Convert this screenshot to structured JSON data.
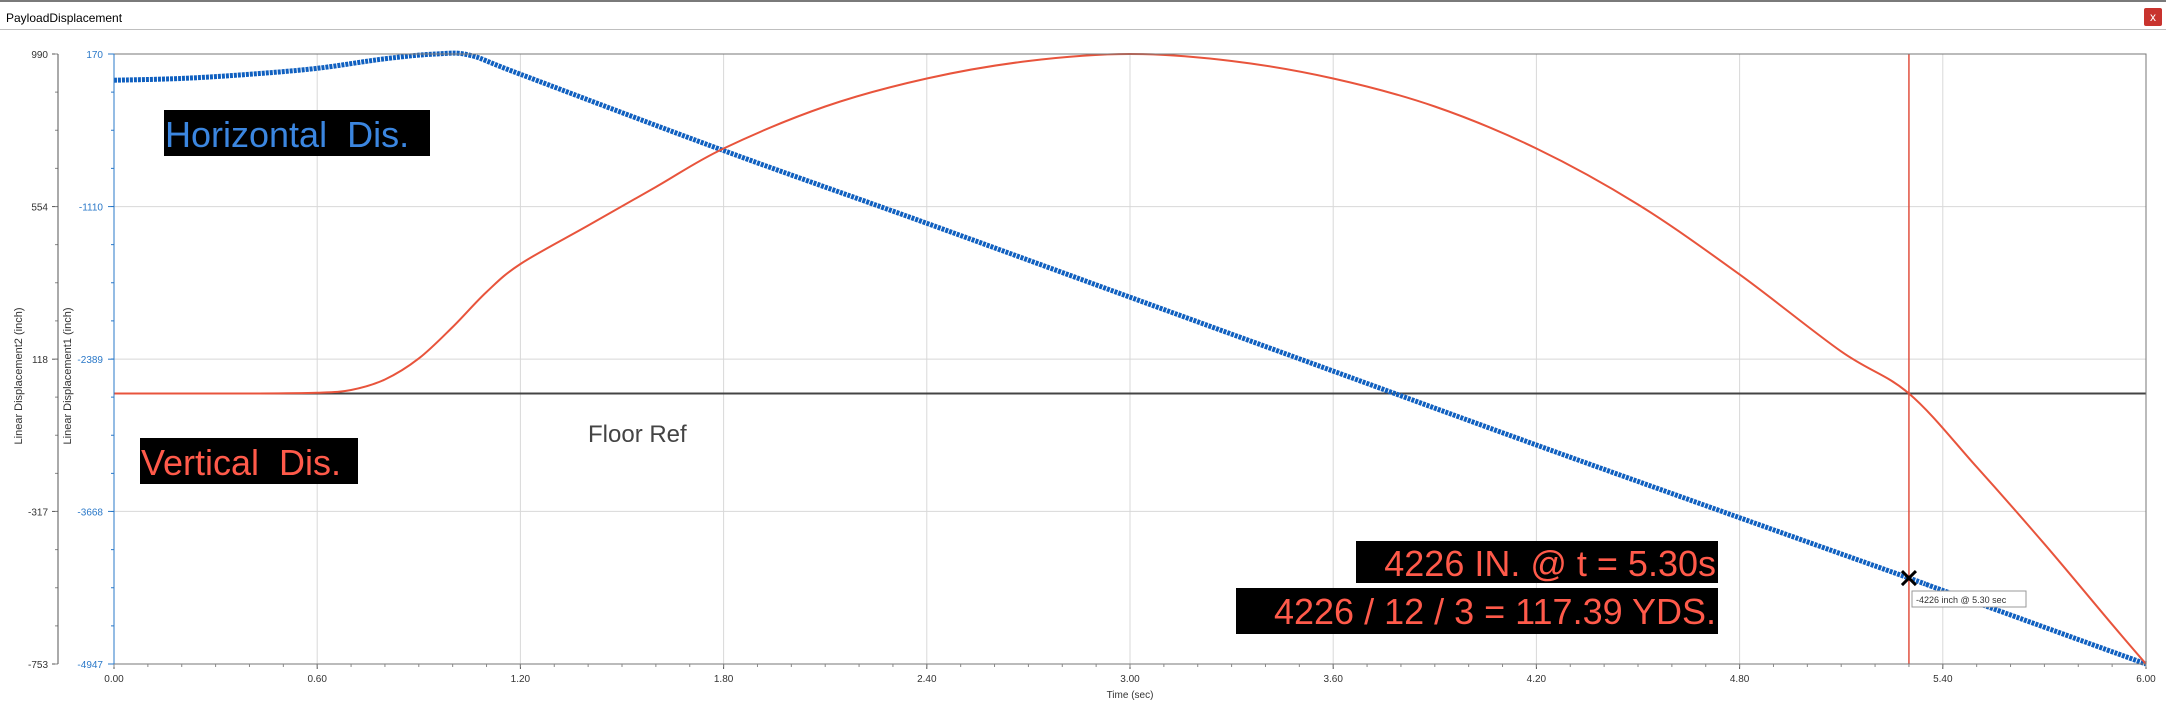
{
  "window": {
    "title": "PayloadDisplacement",
    "close_label": "x"
  },
  "chart_data": {
    "type": "line",
    "xlabel": "Time (sec)",
    "ylabel_outer": "Linear Displacement2 (inch)",
    "ylabel_inner": "Linear Displacement1 (inch)",
    "xlim": [
      0,
      6
    ],
    "x_ticks": [
      0,
      0.6,
      1.2,
      1.8,
      2.4,
      3.0,
      3.6,
      4.2,
      4.8,
      5.4,
      6.0
    ],
    "x_tick_labels": [
      "0.00",
      "0.60",
      "1.20",
      "1.80",
      "2.40",
      "3.00",
      "3.60",
      "4.20",
      "4.80",
      "5.40",
      "6.00"
    ],
    "y_outer": {
      "lim": [
        -753,
        990
      ],
      "ticks": [
        990,
        554,
        118,
        -317,
        -753
      ],
      "tick_labels": [
        "990",
        "554",
        "118",
        "-317",
        "-753"
      ],
      "color": "#333333"
    },
    "y_inner": {
      "lim": [
        -4947,
        170
      ],
      "ticks": [
        170,
        -1110,
        -2389,
        -3668,
        -4947
      ],
      "tick_labels": [
        "170",
        "-1110",
        "-2389",
        "-3668",
        "-4947"
      ],
      "color": "#2a78c8"
    },
    "grid": true,
    "series": [
      {
        "axis": "inner",
        "color": "#1060c0",
        "x": [
          0,
          0.2,
          0.4,
          0.6,
          0.8,
          0.95,
          1.05,
          1.2,
          1.8,
          2.4,
          3.0,
          3.6,
          4.2,
          4.8,
          5.3,
          5.4,
          6.0
        ],
        "values": [
          -50,
          -35,
          0,
          50,
          130,
          170,
          160,
          0,
          -640,
          -1250,
          -1870,
          -2490,
          -3110,
          -3720,
          -4226,
          -4330,
          -4947
        ]
      },
      {
        "axis": "outer",
        "color": "#e8543c",
        "x": [
          0,
          0.4,
          0.6,
          0.7,
          0.8,
          0.9,
          1.0,
          1.1,
          1.2,
          1.4,
          1.6,
          1.8,
          2.1,
          2.4,
          2.7,
          3.0,
          3.3,
          3.6,
          3.9,
          4.2,
          4.5,
          4.8,
          5.1,
          5.3,
          5.5,
          5.7,
          5.9,
          6.0
        ],
        "values": [
          20,
          20,
          22,
          30,
          60,
          120,
          210,
          310,
          390,
          500,
          610,
          720,
          840,
          920,
          970,
          990,
          970,
          920,
          840,
          720,
          560,
          360,
          140,
          20,
          -190,
          -410,
          -640,
          -753
        ]
      }
    ],
    "floor_ref": {
      "value": 20,
      "label": "Floor Ref"
    },
    "cursor": {
      "x": 5.3,
      "y": -4226,
      "tooltip": "-4226 inch @ 5.30 sec"
    },
    "annotations": {
      "horizontal_label": "Horizontal  Dis.",
      "vertical_label": "Vertical  Dis.",
      "result_line1": "4226 IN. @ t = 5.30s",
      "result_line2": "4226 / 12 / 3 = 117.39 YDS."
    },
    "colors": {
      "horizontal_text": "#3b86e0",
      "vertical_text": "#ff5a4a",
      "annotation_bg": "#000000"
    }
  }
}
